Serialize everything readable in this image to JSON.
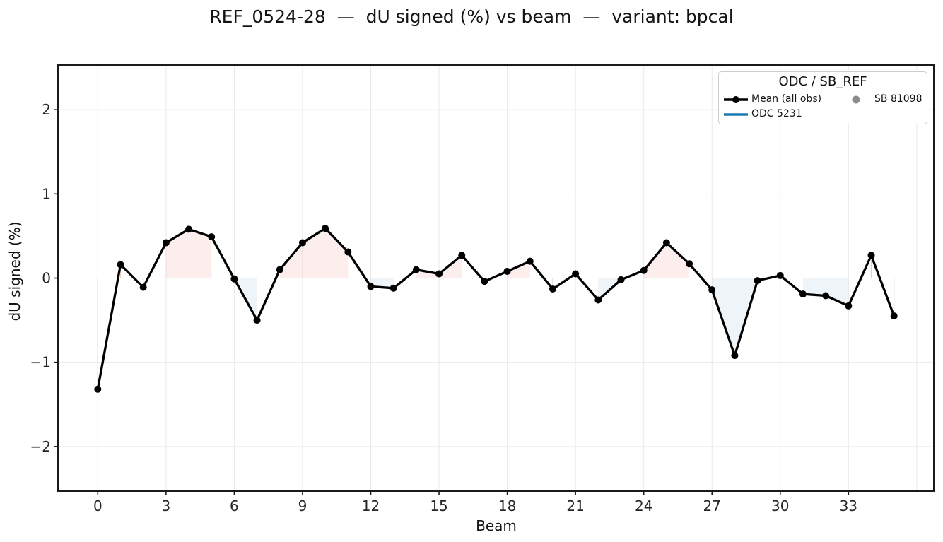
{
  "title": "REF_0524-28  —  dU signed (%) vs beam  —  variant: bpcal",
  "legend": {
    "title": "ODC / SB_REF",
    "entries": [
      {
        "label": "Mean (all obs)",
        "type": "line-with-marker",
        "color": "#000000"
      },
      {
        "label": "ODC 5231",
        "type": "line",
        "color": "#1f77b4"
      },
      {
        "label": "SB 81098",
        "type": "dot",
        "color": "#8c8c8c"
      }
    ]
  },
  "chart_data": {
    "type": "line",
    "title": "REF_0524-28  —  dU signed (%) vs beam  —  variant: bpcal",
    "xlabel": "Beam",
    "ylabel": "dU signed (%)",
    "x": [
      0,
      1,
      2,
      3,
      4,
      5,
      6,
      7,
      8,
      9,
      10,
      11,
      12,
      13,
      14,
      15,
      16,
      17,
      18,
      19,
      20,
      21,
      22,
      23,
      24,
      25,
      26,
      27,
      28,
      29,
      30,
      31,
      32,
      33,
      34,
      35
    ],
    "series": [
      {
        "name": "Mean (all obs)",
        "color": "#000000",
        "values": [
          -1.32,
          0.16,
          -0.11,
          0.42,
          0.58,
          0.49,
          -0.01,
          -0.5,
          0.1,
          0.42,
          0.59,
          0.31,
          -0.1,
          -0.12,
          0.1,
          0.05,
          0.27,
          -0.04,
          0.08,
          0.2,
          -0.13,
          0.05,
          -0.26,
          -0.02,
          0.09,
          0.42,
          0.17,
          -0.14,
          -0.92,
          -0.03,
          0.03,
          -0.19,
          -0.21,
          -0.33,
          0.27,
          -0.45
        ]
      }
    ],
    "xticks": [
      0,
      3,
      6,
      9,
      12,
      15,
      18,
      21,
      24,
      27,
      30,
      33
    ],
    "xgrid": [
      0,
      3,
      6,
      9,
      12,
      15,
      18,
      21,
      24,
      27,
      30,
      33,
      36
    ],
    "yticks": [
      -2,
      -1,
      0,
      1,
      2
    ],
    "xlim": [
      -1.75,
      36.75
    ],
    "ylim": [
      -2.53,
      2.53
    ],
    "grid": true,
    "grid_color": "#e9e9e9",
    "zero_line_color": "#8a8a8a",
    "fill_positive": "rgba(222,70,55,0.09)",
    "fill_negative": "rgba(70,130,180,0.09)",
    "fill_positive_line": "rgba(222,70,55,0.30)",
    "fill_negative_line": "rgba(70,130,180,0.30)",
    "legend_position": "upper right"
  }
}
